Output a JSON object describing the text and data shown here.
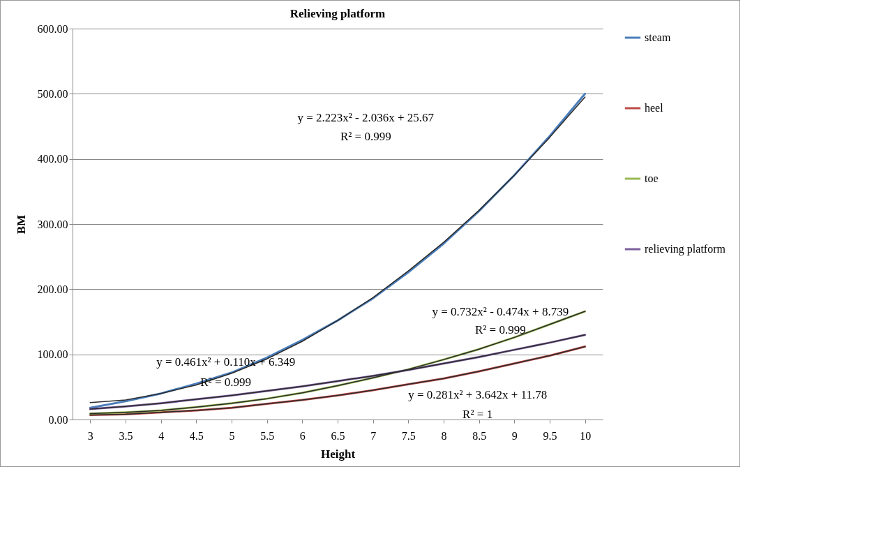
{
  "chart_data": {
    "type": "line",
    "title": "Relieving platform",
    "xlabel": "Height",
    "ylabel": "BM",
    "categories": [
      "3",
      "3.5",
      "4",
      "4.5",
      "5",
      "5.5",
      "6",
      "6.5",
      "7",
      "7.5",
      "8",
      "8.5",
      "9",
      "9.5",
      "10"
    ],
    "ylim": [
      0,
      600
    ],
    "yticks": [
      {
        "value": 0,
        "label": "0.00"
      },
      {
        "value": 100,
        "label": "100.00"
      },
      {
        "value": 200,
        "label": "200.00"
      },
      {
        "value": 300,
        "label": "300.00"
      },
      {
        "value": 400,
        "label": "400.00"
      },
      {
        "value": 500,
        "label": "500.00"
      },
      {
        "value": 600,
        "label": "600.00"
      }
    ],
    "grid": "y",
    "legend": "right",
    "series": [
      {
        "name": "steam",
        "color": "#4a7ebb",
        "values": [
          18,
          28,
          40,
          55,
          72,
          95,
          122,
          152,
          186,
          226,
          270,
          320,
          375,
          435,
          500
        ]
      },
      {
        "name": "heel",
        "color": "#be4b48",
        "values": [
          7,
          8,
          11,
          14,
          18,
          24,
          30,
          37,
          45,
          54,
          63,
          74,
          86,
          98,
          112
        ]
      },
      {
        "name": "toe",
        "color": "#98b954",
        "values": [
          9,
          11,
          14,
          19,
          25,
          32,
          41,
          52,
          64,
          77,
          92,
          108,
          126,
          146,
          166
        ]
      },
      {
        "name": "relieving platform",
        "color": "#7d60a0",
        "values": [
          16,
          20,
          25,
          31,
          37,
          44,
          51,
          59,
          67,
          76,
          86,
          96,
          107,
          118,
          130
        ]
      },
      {
        "type": "line",
        "color": "#2b2b2b",
        "values": [
          26,
          30,
          40,
          53,
          71,
          93,
          120,
          152,
          187,
          228,
          272,
          321,
          375,
          433,
          495
        ]
      },
      {
        "type": "line",
        "color": "#2b2b2b",
        "values": [
          7,
          8,
          11,
          14,
          18,
          24,
          30,
          37,
          45,
          54,
          63,
          74,
          86,
          98,
          112
        ]
      },
      {
        "type": "line",
        "color": "#2b2b2b",
        "values": [
          9,
          11,
          14,
          19,
          25,
          32,
          41,
          52,
          64,
          77,
          92,
          108,
          126,
          146,
          166
        ]
      },
      {
        "type": "line",
        "color": "#2b2b2b",
        "values": [
          16,
          20,
          25,
          31,
          37,
          44,
          51,
          59,
          67,
          76,
          86,
          96,
          107,
          118,
          130
        ]
      }
    ],
    "annotations": [
      "y = 2.223x² - 2.036x + 25.67",
      "R² = 0.999",
      "y = 0.732x² - 0.474x + 8.739",
      "R² = 0.999",
      "y = 0.461x² + 0.110x + 6.349",
      "R² = 0.999",
      "y = 0.281x² + 3.642x + 11.78",
      "R² = 1"
    ]
  }
}
